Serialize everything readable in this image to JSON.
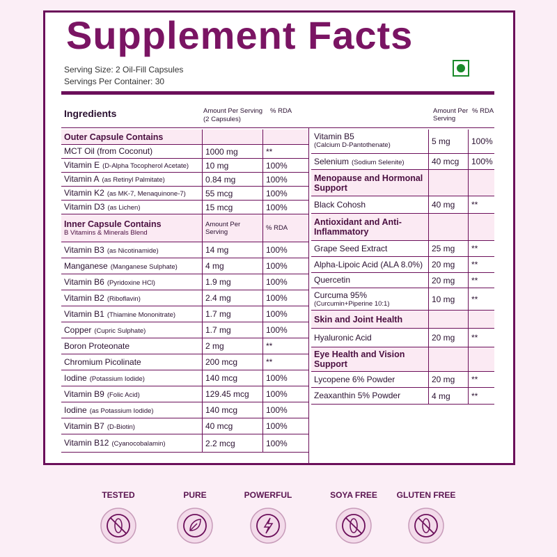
{
  "title": "Supplement Facts",
  "serving_size": "Serving Size: 2 Oil-Fill Capsules",
  "servings_per_container": "Servings Per Container: 30",
  "left_table": {
    "header": {
      "ingredients": "Ingredients",
      "amount": "Amount Per Serving",
      "amount_note": "(2 Capsules)",
      "rda": "% RDA"
    },
    "sections": [
      {
        "heading": "Outer Capsule Contains",
        "rows": [
          {
            "name": "MCT Oil (from Coconut)",
            "amount": "1000 mg",
            "rda": "**"
          },
          {
            "name": "Vitamin E",
            "note": "(D-Alpha Tocopherol Acetate)",
            "amount": "10 mg",
            "rda": "100%"
          },
          {
            "name": "Vitamin A",
            "note": "(as Retinyl Palmitate)",
            "amount": "0.84 mg",
            "rda": "100%"
          },
          {
            "name": "Vitamin K2",
            "note": "(as MK-7, Menaquinone-7)",
            "amount": "55 mcg",
            "rda": "100%"
          },
          {
            "name": "Vitamin D3",
            "note": "(as Lichen)",
            "amount": "15 mcg",
            "rda": "100%"
          }
        ]
      },
      {
        "heading": "Inner Capsule Contains",
        "subheading": "B Vitamins & Minerals Blend",
        "amount_header": "Amount Per Serving",
        "rda_header": "% RDA",
        "rows": [
          {
            "name": "Vitamin B3",
            "note": "(as Nicotinamide)",
            "amount": "14 mg",
            "rda": "100%"
          },
          {
            "name": "Manganese",
            "note": "(Manganese Sulphate)",
            "amount": "4 mg",
            "rda": "100%"
          },
          {
            "name": "Vitamin B6",
            "note": "(Pyridoxine HCl)",
            "amount": "1.9 mg",
            "rda": "100%"
          },
          {
            "name": "Vitamin B2",
            "note": "(Riboflavin)",
            "amount": "2.4 mg",
            "rda": "100%"
          },
          {
            "name": "Vitamin B1",
            "note": "(Thiamine Mononitrate)",
            "amount": "1.7 mg",
            "rda": "100%"
          },
          {
            "name": "Copper",
            "note": "(Cupric Sulphate)",
            "amount": "1.7 mg",
            "rda": "100%"
          },
          {
            "name": "Boron Proteonate",
            "amount": "2 mg",
            "rda": "**"
          },
          {
            "name": "Chromium Picolinate",
            "amount": "200 mcg",
            "rda": "**"
          },
          {
            "name": "Iodine",
            "note": "(Potassium Iodide)",
            "amount": "140 mcg",
            "rda": "100%"
          },
          {
            "name": "Vitamin B9",
            "note": "(Folic Acid)",
            "amount": "129.45 mcg",
            "rda": "100%"
          },
          {
            "name": "Iodine",
            "note": "(as Potassium Iodide)",
            "amount": "140 mcg",
            "rda": "100%"
          },
          {
            "name": "Vitamin B7",
            "note": "(D-Biotin)",
            "amount": "40 mcg",
            "rda": "100%"
          },
          {
            "name": "Vitamin B12",
            "note": "(Cyanocobalamin)",
            "amount": "2.2 mcg",
            "rda": "100%"
          }
        ]
      }
    ]
  },
  "right_table": {
    "header": {
      "amount": "Amount Per Serving",
      "rda": "% RDA"
    },
    "sections": [
      {
        "rows": [
          {
            "name": "Vitamin B5",
            "note": "(Calcium D-Pantothenate)",
            "amount": "5 mg",
            "rda": "100%"
          },
          {
            "name": "Selenium",
            "note": "(Sodium Selenite)",
            "amount": "40 mcg",
            "rda": "100%"
          }
        ]
      },
      {
        "heading": "Menopause and Hormonal Support",
        "rows": [
          {
            "name": "Black Cohosh",
            "amount": "40 mg",
            "rda": "**"
          }
        ]
      },
      {
        "heading": "Antioxidant and Anti-Inflammatory",
        "rows": [
          {
            "name": "Grape Seed Extract",
            "amount": "25 mg",
            "rda": "**"
          },
          {
            "name": "Alpha-Lipoic Acid (ALA 8.0%)",
            "amount": "20 mg",
            "rda": "**"
          },
          {
            "name": "Quercetin",
            "amount": "20 mg",
            "rda": "**"
          },
          {
            "name": "Curcuma 95%",
            "note": "(Curcumin+Piperine 10:1)",
            "amount": "10 mg",
            "rda": "**"
          }
        ]
      },
      {
        "heading": "Skin and Joint Health",
        "rows": [
          {
            "name": "Hyaluronic Acid",
            "amount": "20 mg",
            "rda": "**"
          }
        ]
      },
      {
        "heading": "Eye Health and Vision Support",
        "rows": [
          {
            "name": "Lycopene 6% Powder",
            "amount": "20 mg",
            "rda": "**"
          },
          {
            "name": "Zeaxanthin 5% Powder",
            "amount": "4 mg",
            "rda": "**"
          }
        ]
      }
    ]
  },
  "badges": [
    "TESTED",
    "PURE",
    "POWERFUL",
    "SOYA FREE",
    "GLUTEN FREE"
  ]
}
